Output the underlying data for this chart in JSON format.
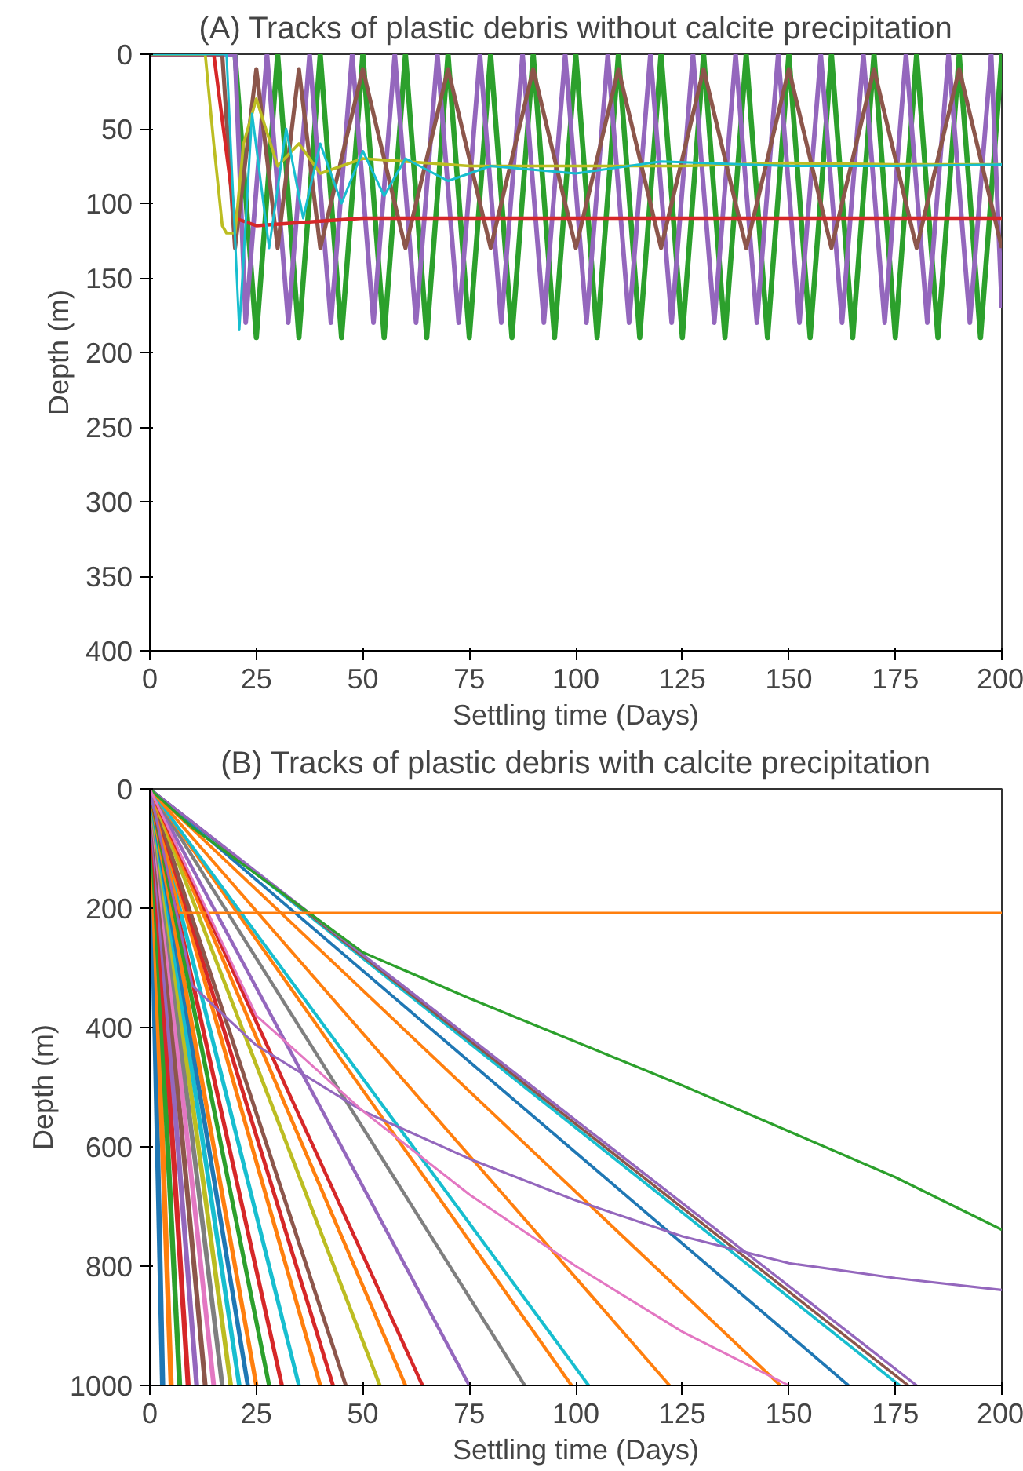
{
  "chart_data": [
    {
      "type": "line",
      "title": "(A) Tracks of plastic debris without calcite precipitation",
      "xlabel": "Settling time (Days)",
      "ylabel": "Depth (m)",
      "xlim": [
        0,
        200
      ],
      "ylim": [
        400,
        0
      ],
      "xticks": [
        0,
        25,
        50,
        75,
        100,
        125,
        150,
        175,
        200
      ],
      "yticks": [
        0,
        50,
        100,
        150,
        200,
        250,
        300,
        350,
        400
      ],
      "grid": false,
      "series": [
        {
          "color": "#2ca02c",
          "x": [
            0,
            20,
            25,
            30,
            35,
            40,
            45,
            50,
            55,
            60,
            65,
            70,
            75,
            80,
            85,
            90,
            95,
            100,
            105,
            110,
            115,
            120,
            125,
            130,
            135,
            140,
            145,
            150,
            155,
            160,
            165,
            170,
            175,
            180,
            185,
            190,
            195,
            200
          ],
          "values": [
            0,
            0,
            190,
            0,
            190,
            0,
            190,
            0,
            190,
            0,
            190,
            0,
            190,
            0,
            190,
            0,
            190,
            0,
            190,
            0,
            190,
            0,
            190,
            0,
            190,
            0,
            190,
            0,
            190,
            0,
            190,
            0,
            190,
            0,
            190,
            0,
            190,
            0
          ]
        },
        {
          "color": "#9467bd",
          "x": [
            0,
            20,
            22.5,
            27.5,
            32.5,
            37.5,
            42.5,
            47.5,
            52.5,
            57.5,
            62.5,
            67.5,
            72.5,
            77.5,
            82.5,
            87.5,
            92.5,
            97.5,
            102.5,
            107.5,
            112.5,
            117.5,
            122.5,
            127.5,
            132.5,
            137.5,
            142.5,
            147.5,
            152.5,
            157.5,
            162.5,
            167.5,
            172.5,
            177.5,
            182.5,
            187.5,
            192.5,
            197.5,
            200
          ],
          "values": [
            0,
            0,
            180,
            0,
            180,
            0,
            180,
            0,
            180,
            0,
            180,
            0,
            180,
            0,
            180,
            0,
            180,
            0,
            180,
            0,
            180,
            0,
            180,
            0,
            180,
            0,
            180,
            0,
            180,
            0,
            180,
            0,
            180,
            0,
            180,
            0,
            180,
            0,
            170
          ]
        },
        {
          "color": "#8c564b",
          "x": [
            0,
            17,
            20,
            25,
            30,
            35,
            40,
            50,
            60,
            70,
            80,
            90,
            100,
            110,
            120,
            130,
            140,
            150,
            160,
            170,
            180,
            190,
            200
          ],
          "values": [
            0,
            0,
            130,
            10,
            130,
            10,
            130,
            10,
            130,
            10,
            130,
            10,
            130,
            10,
            130,
            10,
            130,
            10,
            130,
            10,
            130,
            10,
            130
          ]
        },
        {
          "color": "#d62728",
          "x": [
            0,
            15,
            20,
            25,
            50,
            100,
            150,
            200
          ],
          "values": [
            0,
            0,
            110,
            115,
            110,
            110,
            110,
            110
          ]
        },
        {
          "color": "#bcbd22",
          "x": [
            0,
            13,
            15,
            17,
            18,
            20,
            22,
            25,
            30,
            35,
            40,
            50,
            75,
            100,
            125,
            150,
            175,
            200
          ],
          "values": [
            0,
            0,
            60,
            115,
            120,
            120,
            60,
            30,
            75,
            60,
            80,
            70,
            75,
            75,
            75,
            73,
            74,
            74
          ]
        },
        {
          "color": "#17becf",
          "x": [
            0,
            18,
            21,
            24,
            28,
            32,
            36,
            40,
            45,
            50,
            55,
            60,
            70,
            80,
            100,
            120,
            150,
            175,
            200
          ],
          "values": [
            0,
            0,
            185,
            40,
            130,
            50,
            110,
            60,
            100,
            65,
            95,
            70,
            85,
            75,
            80,
            72,
            75,
            75,
            74
          ]
        }
      ]
    },
    {
      "type": "line",
      "title": "(B) Tracks of plastic debris with calcite precipitation",
      "xlabel": "Settling time (Days)",
      "ylabel": "Depth (m)",
      "xlim": [
        0,
        200
      ],
      "ylim": [
        1000,
        0
      ],
      "xticks": [
        0,
        25,
        50,
        75,
        100,
        125,
        150,
        175,
        200
      ],
      "yticks": [
        0,
        200,
        400,
        600,
        800,
        1000
      ],
      "grid": false,
      "series": [
        {
          "color": "#1f77b4",
          "x": [
            0,
            3
          ],
          "values": [
            0,
            1000
          ]
        },
        {
          "color": "#ff7f0e",
          "x": [
            0,
            5
          ],
          "values": [
            0,
            1000
          ]
        },
        {
          "color": "#2ca02c",
          "x": [
            0,
            7
          ],
          "values": [
            0,
            1000
          ]
        },
        {
          "color": "#d62728",
          "x": [
            0,
            9
          ],
          "values": [
            0,
            1000
          ]
        },
        {
          "color": "#9467bd",
          "x": [
            0,
            11
          ],
          "values": [
            0,
            1000
          ]
        },
        {
          "color": "#8c564b",
          "x": [
            0,
            13
          ],
          "values": [
            0,
            1000
          ]
        },
        {
          "color": "#e377c2",
          "x": [
            0,
            15
          ],
          "values": [
            0,
            1000
          ]
        },
        {
          "color": "#7f7f7f",
          "x": [
            0,
            17
          ],
          "values": [
            0,
            1000
          ]
        },
        {
          "color": "#bcbd22",
          "x": [
            0,
            19
          ],
          "values": [
            0,
            1000
          ]
        },
        {
          "color": "#17becf",
          "x": [
            0,
            21
          ],
          "values": [
            0,
            1000
          ]
        },
        {
          "color": "#1f77b4",
          "x": [
            0,
            23
          ],
          "values": [
            0,
            1000
          ]
        },
        {
          "color": "#ff7f0e",
          "x": [
            0,
            25
          ],
          "values": [
            0,
            1000
          ]
        },
        {
          "color": "#2ca02c",
          "x": [
            0,
            28
          ],
          "values": [
            0,
            1000
          ]
        },
        {
          "color": "#d62728",
          "x": [
            0,
            31
          ],
          "values": [
            0,
            1000
          ]
        },
        {
          "color": "#17becf",
          "x": [
            0,
            35
          ],
          "values": [
            0,
            1000
          ]
        },
        {
          "color": "#ff7f0e",
          "x": [
            0,
            40
          ],
          "values": [
            0,
            1000
          ]
        },
        {
          "color": "#d62728",
          "x": [
            0,
            43
          ],
          "values": [
            0,
            1000
          ]
        },
        {
          "color": "#8c564b",
          "x": [
            0,
            46
          ],
          "values": [
            0,
            1000
          ]
        },
        {
          "color": "#bcbd22",
          "x": [
            0,
            54
          ],
          "values": [
            0,
            1000
          ]
        },
        {
          "color": "#ff7f0e",
          "x": [
            0,
            60
          ],
          "values": [
            0,
            1000
          ]
        },
        {
          "color": "#d62728",
          "x": [
            0,
            64
          ],
          "values": [
            0,
            1000
          ]
        },
        {
          "color": "#9467bd",
          "x": [
            0,
            75
          ],
          "values": [
            0,
            1000
          ]
        },
        {
          "color": "#7f7f7f",
          "x": [
            0,
            88
          ],
          "values": [
            0,
            1000
          ]
        },
        {
          "color": "#ff7f0e",
          "x": [
            0,
            99
          ],
          "values": [
            0,
            1000
          ]
        },
        {
          "color": "#17becf",
          "x": [
            0,
            103
          ],
          "values": [
            0,
            1000
          ]
        },
        {
          "color": "#ff7f0e",
          "x": [
            0,
            122
          ],
          "values": [
            0,
            1000
          ]
        },
        {
          "color": "#ff7f0e",
          "x": [
            0,
            148
          ],
          "values": [
            0,
            1000
          ]
        },
        {
          "color": "#1f77b4",
          "x": [
            0,
            164
          ],
          "values": [
            0,
            1000
          ]
        },
        {
          "color": "#17becf",
          "x": [
            0,
            176
          ],
          "values": [
            0,
            1000
          ]
        },
        {
          "color": "#8c564b",
          "x": [
            0,
            178
          ],
          "values": [
            0,
            1000
          ]
        },
        {
          "color": "#9467bd",
          "x": [
            0,
            180
          ],
          "values": [
            0,
            1000
          ]
        },
        {
          "color": "#2ca02c",
          "x": [
            0,
            10,
            25,
            50,
            75,
            100,
            125,
            150,
            175,
            200
          ],
          "values": [
            0,
            65,
            143,
            274,
            351,
            424,
            497,
            574,
            651,
            739
          ]
        },
        {
          "color": "#ff7f0e",
          "x": [
            0,
            7,
            200
          ],
          "values": [
            0,
            208,
            208
          ]
        },
        {
          "color": "#9467bd",
          "x": [
            0,
            10,
            25,
            50,
            75,
            100,
            125,
            150,
            175,
            200
          ],
          "values": [
            0,
            330,
            430,
            540,
            620,
            690,
            750,
            795,
            820,
            840
          ]
        },
        {
          "color": "#e377c2",
          "x": [
            0,
            25,
            50,
            75,
            100,
            125,
            150
          ],
          "values": [
            0,
            380,
            540,
            680,
            800,
            910,
            1000
          ]
        }
      ]
    }
  ]
}
